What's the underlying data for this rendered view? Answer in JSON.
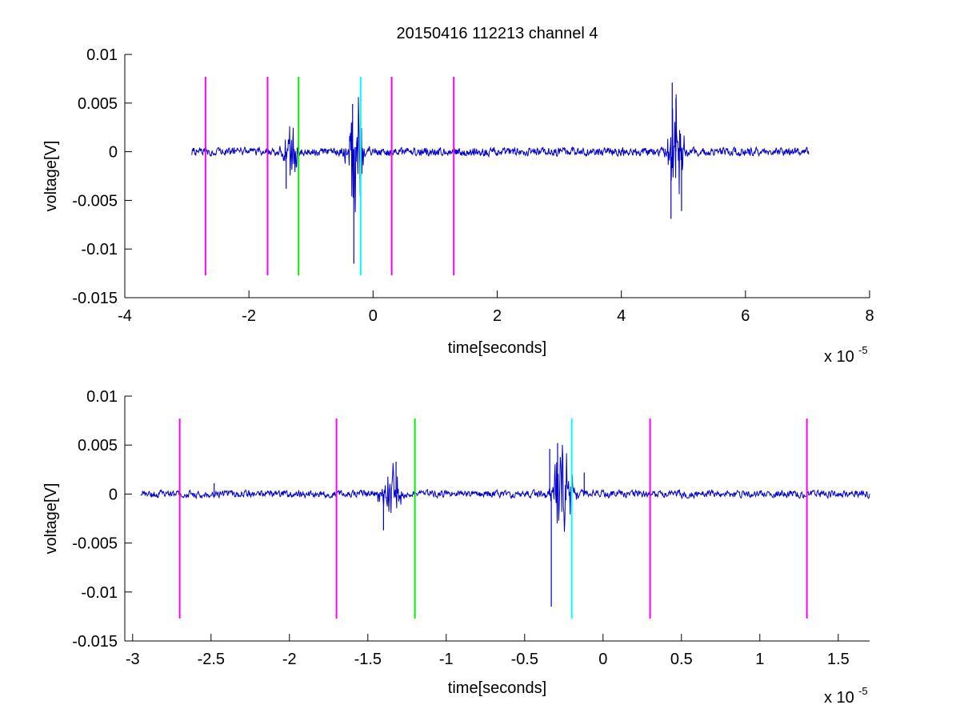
{
  "chart_data": [
    {
      "type": "line",
      "title": "20150416 112213 channel 4",
      "xlabel": "time[seconds]",
      "ylabel": "voltage[V]",
      "x_multiplier": {
        "base": "x 10",
        "exponent": "-5"
      },
      "xlim": [
        -4,
        8
      ],
      "ylim": [
        -0.015,
        0.01
      ],
      "xticks": [
        -4,
        -2,
        0,
        2,
        4,
        6,
        8
      ],
      "xtick_labels": [
        "-4",
        "-2",
        "0",
        "2",
        "4",
        "6",
        "8"
      ],
      "yticks": [
        -0.015,
        -0.01,
        -0.005,
        0,
        0.005,
        0.01
      ],
      "ytick_labels": [
        "-0.015",
        "-0.01",
        "-0.005",
        "0",
        "0.005",
        "0.01"
      ],
      "grid": false,
      "signal": {
        "color": "#0000cc",
        "x_range": [
          -2.92,
          7.02
        ],
        "baseline_noise": 0.0004,
        "bursts": [
          {
            "center": -1.33,
            "width": 0.14,
            "amp": 0.0042
          },
          {
            "center": -0.3,
            "width": 0.18,
            "amp": 0.0085
          },
          {
            "center": 4.87,
            "width": 0.16,
            "amp": 0.0072
          }
        ],
        "peaks": [
          {
            "x": -0.31,
            "y": -0.0115
          },
          {
            "x": -0.33,
            "y": 0.0049
          },
          {
            "x": -1.4,
            "y": -0.0038
          },
          {
            "x": 4.82,
            "y": 0.0071
          },
          {
            "x": 4.8,
            "y": -0.0069
          },
          {
            "x": 4.97,
            "y": -0.0061
          },
          {
            "x": 4.88,
            "y": 0.0055
          }
        ]
      },
      "markers": {
        "y_range": [
          -0.0127,
          0.0077
        ],
        "lines": [
          {
            "x": -2.7,
            "color": "#ff00ff"
          },
          {
            "x": -1.7,
            "color": "#ff00ff"
          },
          {
            "x": -1.2,
            "color": "#00ee00"
          },
          {
            "x": -0.2,
            "color": "#00ffff"
          },
          {
            "x": 0.3,
            "color": "#ff00ff"
          },
          {
            "x": 1.3,
            "color": "#ff00ff"
          }
        ]
      }
    },
    {
      "type": "line",
      "title": "",
      "xlabel": "time[seconds]",
      "ylabel": "voltage[V]",
      "x_multiplier": {
        "base": "x 10",
        "exponent": "-5"
      },
      "xlim": [
        -3.05,
        1.7
      ],
      "ylim": [
        -0.015,
        0.01
      ],
      "xticks": [
        -3,
        -2.5,
        -2,
        -1.5,
        -1,
        -0.5,
        0,
        0.5,
        1,
        1.5
      ],
      "xtick_labels": [
        "-3",
        "-2.5",
        "-2",
        "-1.5",
        "-1",
        "-0.5",
        "0",
        "0.5",
        "1",
        "1.5"
      ],
      "yticks": [
        -0.015,
        -0.01,
        -0.005,
        0,
        0.005,
        0.01
      ],
      "ytick_labels": [
        "-0.015",
        "-0.01",
        "-0.005",
        "0",
        "0.005",
        "0.01"
      ],
      "grid": false,
      "signal": {
        "color": "#0000cc",
        "x_range": [
          -2.95,
          1.7
        ],
        "baseline_noise": 0.00035,
        "bursts": [
          {
            "center": -1.35,
            "width": 0.09,
            "amp": 0.0036
          },
          {
            "center": -0.26,
            "width": 0.09,
            "amp": 0.0062
          }
        ],
        "peaks": [
          {
            "x": -1.4,
            "y": -0.0037
          },
          {
            "x": -1.32,
            "y": 0.0033
          },
          {
            "x": -0.33,
            "y": -0.0115
          },
          {
            "x": -0.34,
            "y": 0.0046
          },
          {
            "x": -0.29,
            "y": 0.0052
          },
          {
            "x": -0.2,
            "y": -0.0029
          },
          {
            "x": -0.12,
            "y": 0.0022
          },
          {
            "x": -2.48,
            "y": 0.0011
          }
        ]
      },
      "markers": {
        "y_range": [
          -0.0127,
          0.0077
        ],
        "lines": [
          {
            "x": -2.7,
            "color": "#ff00ff"
          },
          {
            "x": -1.7,
            "color": "#ff00ff"
          },
          {
            "x": -1.2,
            "color": "#00ee00"
          },
          {
            "x": -0.2,
            "color": "#00ffff"
          },
          {
            "x": 0.3,
            "color": "#ff00ff"
          },
          {
            "x": 1.3,
            "color": "#ff00ff"
          }
        ]
      }
    }
  ]
}
